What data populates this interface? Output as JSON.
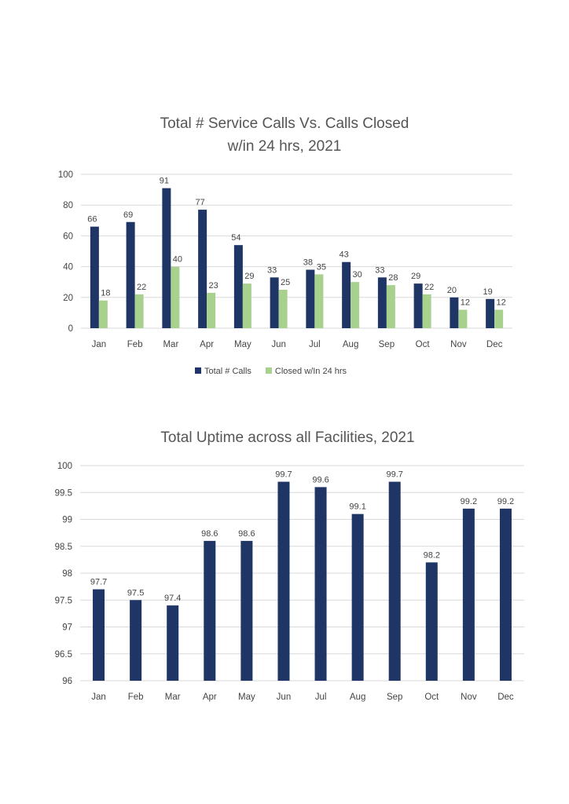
{
  "chart_data": [
    {
      "type": "bar",
      "title": [
        "Total # Service Calls Vs. Calls Closed",
        "w/in 24 hrs, 2021"
      ],
      "categories": [
        "Jan",
        "Feb",
        "Mar",
        "Apr",
        "May",
        "Jun",
        "Jul",
        "Aug",
        "Sep",
        "Oct",
        "Nov",
        "Dec"
      ],
      "series": [
        {
          "name": "Total # Calls",
          "color": "#1f3566",
          "values": [
            66,
            69,
            91,
            77,
            54,
            33,
            38,
            43,
            33,
            29,
            20,
            19
          ]
        },
        {
          "name": "Closed w/In 24 hrs",
          "color": "#a9d18e",
          "values": [
            18,
            22,
            40,
            23,
            29,
            25,
            35,
            30,
            28,
            22,
            12,
            12
          ]
        }
      ],
      "ylim": [
        0,
        100
      ],
      "yticks": [
        "0",
        "20",
        "40",
        "60",
        "80",
        "100"
      ],
      "legend": "bottom",
      "xlabel": "",
      "ylabel": ""
    },
    {
      "type": "bar",
      "title": [
        "Total Uptime across all Facilities, 2021"
      ],
      "categories": [
        "Jan",
        "Feb",
        "Mar",
        "Apr",
        "May",
        "Jun",
        "Jul",
        "Aug",
        "Sep",
        "Oct",
        "Nov",
        "Dec"
      ],
      "series": [
        {
          "name": "Uptime",
          "color": "#1f3566",
          "values": [
            97.7,
            97.5,
            97.4,
            98.6,
            98.6,
            99.7,
            99.6,
            99.1,
            99.7,
            98.2,
            99.2,
            99.2
          ]
        }
      ],
      "ylim": [
        96,
        100
      ],
      "yticks": [
        "96",
        "96.5",
        "97",
        "97.5",
        "98",
        "98.5",
        "99",
        "99.5",
        "100"
      ],
      "legend": "none",
      "xlabel": "",
      "ylabel": ""
    }
  ]
}
